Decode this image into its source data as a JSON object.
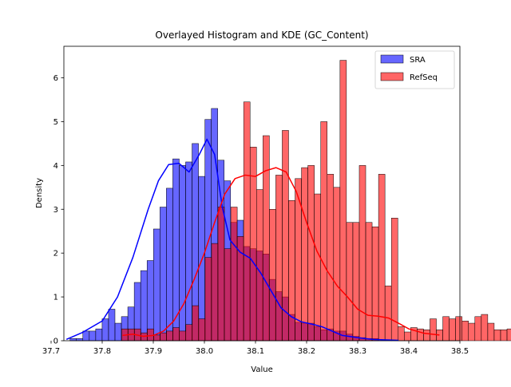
{
  "chart_data": {
    "type": "histogram+kde",
    "title": "Overlayed Histogram and KDE (GC_Content)",
    "xlabel": "Value",
    "ylabel": "Density",
    "xlim": [
      37.725,
      38.5
    ],
    "ylim": [
      0,
      6.72
    ],
    "xticks": [
      37.7,
      37.8,
      37.9,
      38.0,
      38.1,
      38.2,
      38.3,
      38.4,
      38.5
    ],
    "xtick_labels": [
      "37.7",
      "37.8",
      "37.9",
      "38.0",
      "38.1",
      "38.2",
      "38.3",
      "38.4",
      "38.5"
    ],
    "yticks": [
      0,
      1,
      2,
      3,
      4,
      5,
      6
    ],
    "ytick_labels": [
      "0",
      "1",
      "2",
      "3",
      "4",
      "5",
      "6"
    ],
    "grid": false,
    "legend_position": "top-right",
    "series": [
      {
        "name": "SRA",
        "color": "#0000ff",
        "bin_start": 37.737,
        "bin_width": 0.01257,
        "densities": [
          0.05,
          0.05,
          0.22,
          0.22,
          0.27,
          0.5,
          0.72,
          0.4,
          0.55,
          0.77,
          1.33,
          1.6,
          1.83,
          2.55,
          3.05,
          3.48,
          4.15,
          4.0,
          4.08,
          4.5,
          3.75,
          5.05,
          5.3,
          4.12,
          3.65,
          2.7,
          2.75,
          2.15,
          2.1,
          2.05,
          1.98,
          1.4,
          1.12,
          1.0,
          0.6,
          0.42,
          0.4,
          0.4,
          0.32,
          0.25,
          0.27,
          0.22,
          0.22,
          0.15,
          0.1,
          0.07,
          0.05,
          0.05
        ],
        "kde_x": [
          37.73,
          37.76,
          37.8,
          37.83,
          37.86,
          37.89,
          37.91,
          37.93,
          37.95,
          37.97,
          37.99,
          38.005,
          38.02,
          38.035,
          38.05,
          38.07,
          38.09,
          38.11,
          38.13,
          38.15,
          38.17,
          38.19,
          38.21,
          38.23,
          38.25,
          38.27,
          38.3,
          38.33,
          38.38
        ],
        "kde_y": [
          0.03,
          0.18,
          0.45,
          1.0,
          1.9,
          3.0,
          3.65,
          4.02,
          4.05,
          3.85,
          4.25,
          4.6,
          4.25,
          3.05,
          2.3,
          2.02,
          1.88,
          1.55,
          1.15,
          0.75,
          0.55,
          0.43,
          0.38,
          0.32,
          0.22,
          0.12,
          0.07,
          0.03,
          0.01
        ]
      },
      {
        "name": "RefSeq",
        "color": "#ff0000",
        "bin_start": 37.838,
        "bin_width": 0.01257,
        "densities": [
          0.27,
          0.27,
          0.27,
          0.18,
          0.27,
          0.13,
          0.18,
          0.22,
          0.3,
          0.22,
          0.37,
          0.8,
          0.5,
          1.9,
          2.22,
          3.05,
          2.1,
          3.05,
          2.38,
          5.45,
          4.42,
          3.45,
          4.68,
          3.0,
          3.78,
          4.8,
          3.2,
          3.7,
          3.95,
          4.0,
          3.35,
          5.0,
          3.8,
          3.5,
          6.4,
          2.7,
          2.7,
          4.0,
          2.7,
          2.6,
          3.8,
          1.25,
          2.8,
          0.32,
          0.2,
          0.3,
          0.27,
          0.25,
          0.5,
          0.25,
          0.55,
          0.5,
          0.55,
          0.45,
          0.4,
          0.55,
          0.6,
          0.4,
          0.25,
          0.25,
          0.27,
          0.25,
          0.1,
          0.05,
          0.05,
          0.52,
          0.55,
          0.2,
          0.3,
          0.25,
          0.35,
          0.27,
          0.28,
          0.25,
          0.25,
          0.1,
          0.55
        ],
        "kde_x": [
          37.84,
          37.86,
          37.88,
          37.9,
          37.92,
          37.94,
          37.96,
          37.98,
          38.0,
          38.02,
          38.04,
          38.06,
          38.08,
          38.1,
          38.12,
          38.14,
          38.16,
          38.18,
          38.2,
          38.22,
          38.24,
          38.26,
          38.28,
          38.3,
          38.32,
          38.34,
          38.36,
          38.38,
          38.4,
          38.43,
          38.46
        ],
        "kde_y": [
          0.12,
          0.15,
          0.1,
          0.12,
          0.22,
          0.45,
          0.85,
          1.4,
          2.0,
          2.7,
          3.35,
          3.7,
          3.78,
          3.75,
          3.88,
          3.95,
          3.85,
          3.4,
          2.7,
          2.05,
          1.6,
          1.25,
          1.0,
          0.72,
          0.58,
          0.56,
          0.52,
          0.4,
          0.27,
          0.17,
          0.13
        ]
      }
    ]
  }
}
